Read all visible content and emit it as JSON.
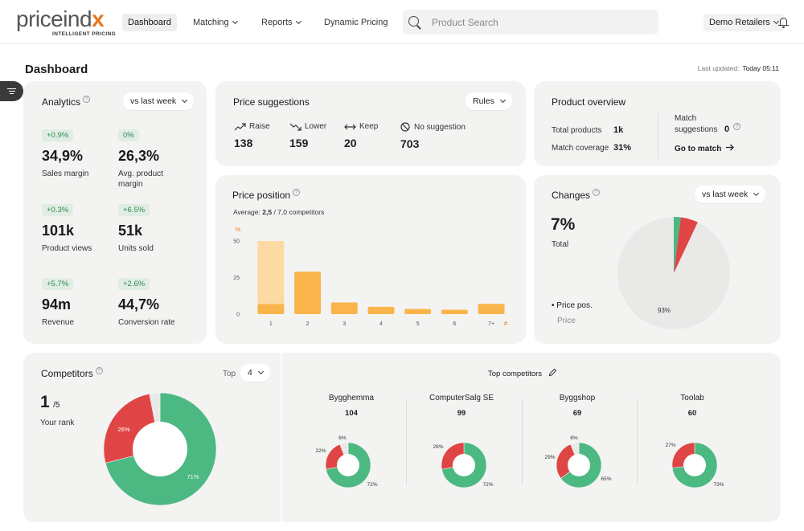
{
  "header": {
    "logo_main": "priceind",
    "logo_accent": "x",
    "logo_tagline": "INTELLIGENT PRICING",
    "nav": [
      {
        "label": "Dashboard",
        "active": true
      },
      {
        "label": "Matching",
        "dropdown": true
      },
      {
        "label": "Reports",
        "dropdown": true
      },
      {
        "label": "Dynamic Pricing"
      }
    ],
    "search_placeholder": "Product Search",
    "retailer": "Demo Retailers",
    "icons": [
      "search-icon",
      "bell-icon",
      "chevron-down-icon"
    ]
  },
  "page": {
    "title": "Dashboard",
    "last_updated_label": "Last updated:",
    "last_updated_value": "Today 05:11"
  },
  "analytics": {
    "title": "Analytics",
    "period": "vs last week",
    "metrics": [
      {
        "change": "+0.9%",
        "value": "34,9%",
        "label": "Sales margin"
      },
      {
        "change": "0%",
        "value": "26,3%",
        "label": "Avg. product margin"
      },
      {
        "change": "+0.3%",
        "value": "101k",
        "label": "Product views"
      },
      {
        "change": "+6.5%",
        "value": "51k",
        "label": "Units sold"
      },
      {
        "change": "+5.7%",
        "value": "94m",
        "label": "Revenue"
      },
      {
        "change": "+2.6%",
        "value": "44,7%",
        "label": "Conversion rate"
      }
    ]
  },
  "suggestions": {
    "title": "Price suggestions",
    "filter": "Rules",
    "items": [
      {
        "label": "Raise",
        "value": "138",
        "icon": "trend-up-icon"
      },
      {
        "label": "Lower",
        "value": "159",
        "icon": "trend-down-icon"
      },
      {
        "label": "Keep",
        "value": "20",
        "icon": "arrows-horizontal-icon"
      },
      {
        "label": "No suggestion",
        "value": "703",
        "icon": "ban-icon"
      }
    ]
  },
  "overview": {
    "title": "Product overview",
    "total_label": "Total products",
    "total_value": "1k",
    "coverage_label": "Match coverage",
    "coverage_value": "31%",
    "match_label_1": "Match",
    "match_label_2": "suggestions",
    "match_value": "0",
    "goto": "Go to match"
  },
  "price_position": {
    "title": "Price position",
    "average_label": "Average:",
    "average_value": "2,5",
    "average_rest": "/ 7,0 competitors"
  },
  "changes": {
    "title": "Changes",
    "period": "vs last week",
    "value": "7%",
    "value_label": "Total",
    "legend_title": "Price pos.",
    "legend_sub": "Price"
  },
  "competitors": {
    "title": "Competitors",
    "top_label": "Top",
    "top_value": "4",
    "rank": "1",
    "rank_of": "/5",
    "rank_label": "Your rank",
    "top_title": "Top competitors",
    "list": [
      {
        "name": "Bygghemma",
        "count": "104"
      },
      {
        "name": "ComputerSalg SE",
        "count": "99"
      },
      {
        "name": "Byggshop",
        "count": "69"
      },
      {
        "name": "Toolab",
        "count": "60"
      }
    ]
  },
  "colors": {
    "green": "#4cb882",
    "red": "#df4545",
    "orange": "#f9b54c",
    "orange_light": "#fdd9a3",
    "gray": "#e9e9e8",
    "accent": "#e8761c"
  },
  "chart_data": [
    {
      "type": "bar",
      "title": "Price position",
      "ylabel": "%",
      "xlabel": "#",
      "categories": [
        "1",
        "2",
        "3",
        "4",
        "5",
        "6",
        "7+"
      ],
      "series": [
        {
          "values": [
            7,
            29,
            8,
            5,
            3.5,
            3,
            7
          ]
        },
        {
          "values": [
            43,
            0,
            0,
            0,
            0,
            0,
            0
          ]
        }
      ],
      "stacked": true,
      "yticks": [
        0,
        25,
        50
      ],
      "ylim": [
        0,
        52
      ]
    },
    {
      "type": "pie",
      "title": "Changes",
      "slices": [
        {
          "label": "Raise",
          "value": 2,
          "color": "#4cb882"
        },
        {
          "label": "Lower",
          "value": 5,
          "color": "#df4545"
        },
        {
          "label": "",
          "value": 93,
          "color": "#e9e9e8"
        }
      ],
      "data_labels": [
        "93%"
      ]
    },
    {
      "type": "pie",
      "title": "Competitors",
      "donut": true,
      "slices": [
        {
          "value": 71,
          "color": "#4cb882",
          "label": "71%"
        },
        {
          "value": 26,
          "color": "#df4545",
          "label": "26%"
        },
        {
          "value": 3,
          "color": "#e9e9e8",
          "label": ""
        }
      ]
    },
    {
      "type": "pie",
      "donut": true,
      "name": "Bygghemma",
      "slices": [
        {
          "value": 72,
          "color": "#4cb882",
          "label": "72%"
        },
        {
          "value": 22,
          "color": "#df4545",
          "label": "22%"
        },
        {
          "value": 6,
          "color": "#e9e9e8",
          "label": "6%"
        }
      ]
    },
    {
      "type": "pie",
      "donut": true,
      "name": "ComputerSalg SE",
      "slices": [
        {
          "value": 72,
          "color": "#4cb882",
          "label": "72%"
        },
        {
          "value": 28,
          "color": "#df4545",
          "label": "28%"
        }
      ]
    },
    {
      "type": "pie",
      "donut": true,
      "name": "Byggshop",
      "slices": [
        {
          "value": 65,
          "color": "#4cb882",
          "label": "65%"
        },
        {
          "value": 29,
          "color": "#df4545",
          "label": "29%"
        },
        {
          "value": 6,
          "color": "#e9e9e8",
          "label": "6%"
        }
      ]
    },
    {
      "type": "pie",
      "donut": true,
      "name": "Toolab",
      "slices": [
        {
          "value": 73,
          "color": "#4cb882",
          "label": "73%"
        },
        {
          "value": 27,
          "color": "#df4545",
          "label": "27%"
        }
      ]
    }
  ]
}
